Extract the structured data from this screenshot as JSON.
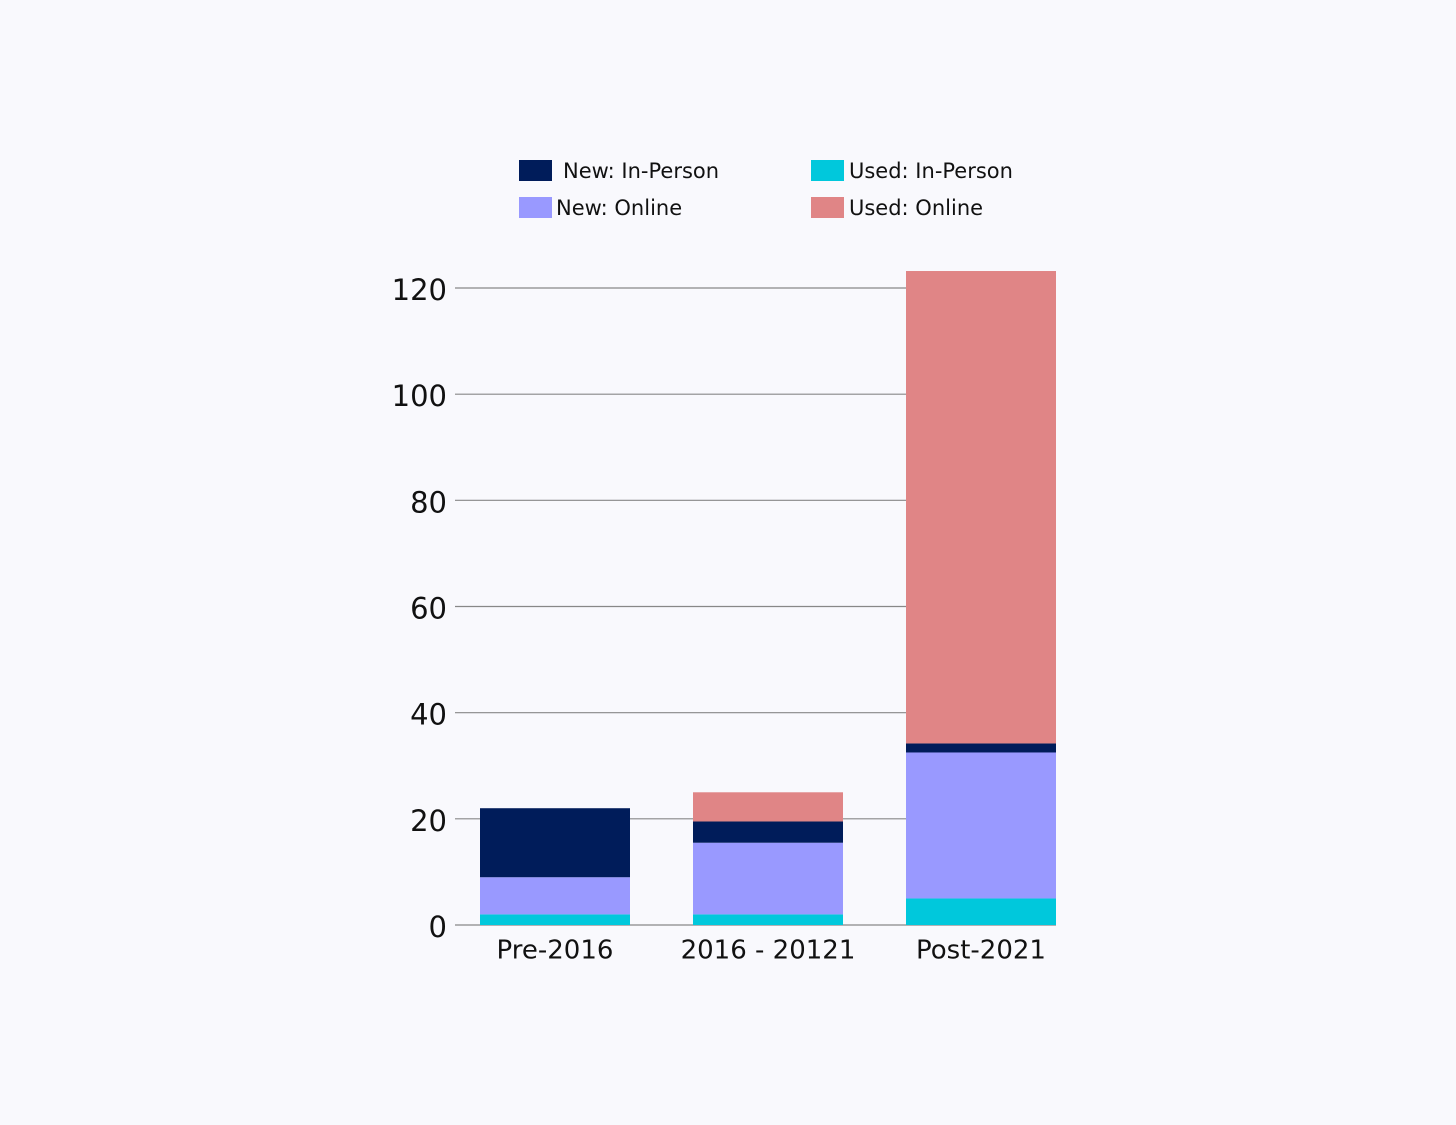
{
  "chart_data": {
    "type": "stacked_bar",
    "categories": [
      "Pre-2016",
      "2016 - 20121",
      "Post-2021"
    ],
    "series": [
      {
        "name": "Used: In-Person",
        "color": "#00c8dc",
        "values": [
          2,
          2,
          5
        ]
      },
      {
        "name": "New: Online",
        "color": "#9999ff",
        "values": [
          7,
          13.5,
          27.5
        ]
      },
      {
        "name": "New: In-Person",
        "color": "#001c5a",
        "values": [
          13,
          4,
          1.7
        ]
      },
      {
        "name": "Used: Online",
        "color": "#e08586",
        "values": [
          0,
          5.5,
          89
        ]
      }
    ],
    "ylim": [
      0,
      120
    ],
    "yticks": [
      0,
      20,
      40,
      60,
      80,
      100,
      120
    ],
    "grid": true
  }
}
